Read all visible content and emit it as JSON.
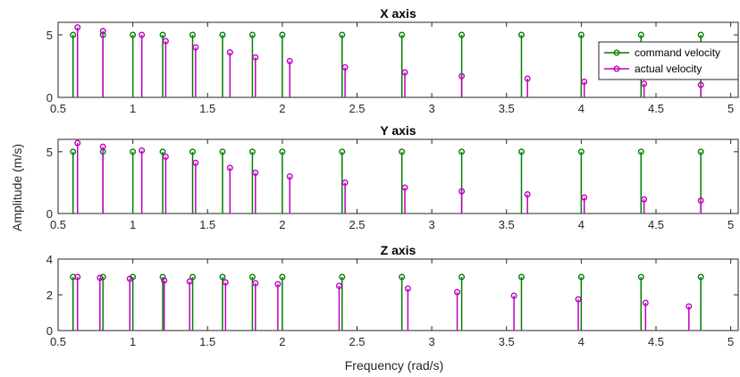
{
  "figure": {
    "xlabel": "Frequency (rad/s)",
    "ylabel": "Amplitude (m/s)"
  },
  "colors": {
    "command": "#007f00",
    "actual": "#bf00bf",
    "axes": "#262626"
  },
  "chart_data": [
    {
      "type": "stem",
      "title": "X axis",
      "xlim": [
        0.5,
        5.05
      ],
      "ylim": [
        0,
        6
      ],
      "xticks": [
        0.5,
        1,
        1.5,
        2,
        2.5,
        3,
        3.5,
        4,
        4.5,
        5
      ],
      "xtick_labels": [
        "0.5",
        "1",
        "1.5",
        "2",
        "2.5",
        "3",
        "3.5",
        "4",
        "4.5",
        "5"
      ],
      "yticks": [
        0,
        5
      ],
      "ytick_labels": [
        "0",
        "5"
      ],
      "legend": {
        "position": "top-right",
        "entries": [
          "command velocity",
          "actual velocity"
        ]
      },
      "series": [
        {
          "name": "command velocity",
          "x": [
            0.6,
            0.8,
            1.0,
            1.2,
            1.4,
            1.6,
            1.8,
            2.0,
            2.4,
            2.8,
            3.2,
            3.6,
            4.0,
            4.4,
            4.8
          ],
          "y": [
            5,
            5,
            5,
            5,
            5,
            5,
            5,
            5,
            5,
            5,
            5,
            5,
            5,
            5,
            5
          ]
        },
        {
          "name": "actual velocity",
          "x": [
            0.63,
            0.8,
            1.06,
            1.22,
            1.42,
            1.65,
            1.82,
            2.05,
            2.42,
            2.82,
            3.2,
            3.64,
            4.02,
            4.42,
            4.8
          ],
          "y": [
            5.6,
            5.3,
            5.0,
            4.5,
            4.0,
            3.6,
            3.2,
            2.9,
            2.4,
            2.0,
            1.7,
            1.5,
            1.25,
            1.1,
            1.0
          ]
        }
      ]
    },
    {
      "type": "stem",
      "title": "Y axis",
      "xlim": [
        0.5,
        5.05
      ],
      "ylim": [
        0,
        6
      ],
      "xticks": [
        0.5,
        1,
        1.5,
        2,
        2.5,
        3,
        3.5,
        4,
        4.5,
        5
      ],
      "xtick_labels": [
        "0.5",
        "1",
        "1.5",
        "2",
        "2.5",
        "3",
        "3.5",
        "4",
        "4.5",
        "5"
      ],
      "yticks": [
        0,
        5
      ],
      "ytick_labels": [
        "0",
        "5"
      ],
      "series": [
        {
          "name": "command velocity",
          "x": [
            0.6,
            0.8,
            1.0,
            1.2,
            1.4,
            1.6,
            1.8,
            2.0,
            2.4,
            2.8,
            3.2,
            3.6,
            4.0,
            4.4,
            4.8
          ],
          "y": [
            5,
            5,
            5,
            5,
            5,
            5,
            5,
            5,
            5,
            5,
            5,
            5,
            5,
            5,
            5
          ]
        },
        {
          "name": "actual velocity",
          "x": [
            0.63,
            0.8,
            1.06,
            1.22,
            1.42,
            1.65,
            1.82,
            2.05,
            2.42,
            2.82,
            3.2,
            3.64,
            4.02,
            4.42,
            4.8
          ],
          "y": [
            5.7,
            5.4,
            5.1,
            4.6,
            4.1,
            3.7,
            3.3,
            3.0,
            2.5,
            2.1,
            1.8,
            1.55,
            1.3,
            1.15,
            1.05
          ]
        }
      ]
    },
    {
      "type": "stem",
      "title": "Z axis",
      "xlim": [
        0.5,
        5.05
      ],
      "ylim": [
        0,
        4
      ],
      "xticks": [
        0.5,
        1,
        1.5,
        2,
        2.5,
        3,
        3.5,
        4,
        4.5,
        5
      ],
      "xtick_labels": [
        "0.5",
        "1",
        "1.5",
        "2",
        "2.5",
        "3",
        "3.5",
        "4",
        "4.5",
        "5"
      ],
      "yticks": [
        0,
        2,
        4
      ],
      "ytick_labels": [
        "0",
        "2",
        "4"
      ],
      "series": [
        {
          "name": "command velocity",
          "x": [
            0.6,
            0.8,
            1.0,
            1.2,
            1.4,
            1.6,
            1.8,
            2.0,
            2.4,
            2.8,
            3.2,
            3.6,
            4.0,
            4.4,
            4.8
          ],
          "y": [
            3,
            3,
            3,
            3,
            3,
            3,
            3,
            3,
            3,
            3,
            3,
            3,
            3,
            3,
            3
          ]
        },
        {
          "name": "actual velocity",
          "x": [
            0.63,
            0.78,
            0.98,
            1.21,
            1.38,
            1.62,
            1.82,
            1.97,
            2.38,
            2.84,
            3.17,
            3.55,
            3.98,
            4.43,
            4.72
          ],
          "y": [
            3.0,
            2.95,
            2.9,
            2.8,
            2.75,
            2.7,
            2.65,
            2.6,
            2.5,
            2.35,
            2.15,
            1.95,
            1.75,
            1.55,
            1.35
          ]
        }
      ]
    }
  ]
}
